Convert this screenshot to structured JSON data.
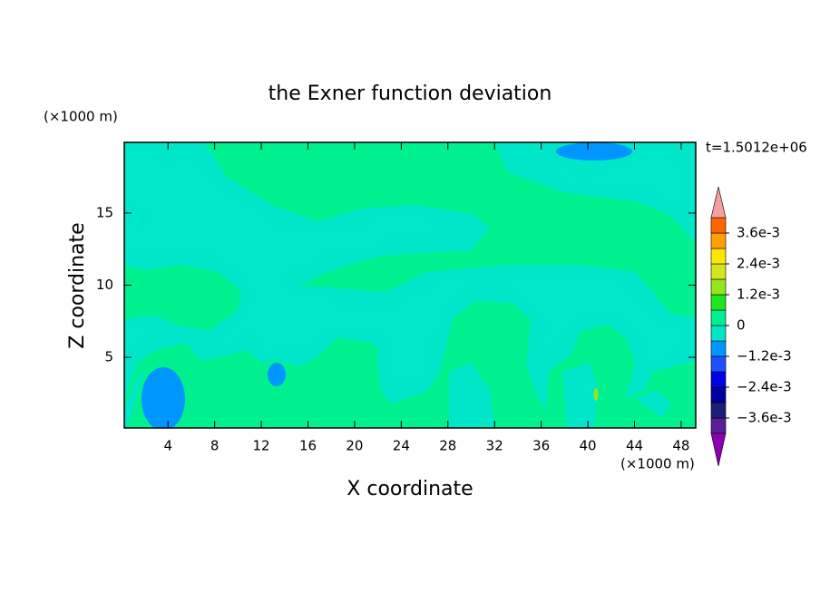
{
  "chart_data": {
    "type": "contour",
    "title": "the Exner function deviation",
    "x_label": "X coordinate",
    "y_label": "Z coordinate",
    "x_unit": "(×1000 m)",
    "y_unit": "(×1000 m)",
    "annotation": "t=1.5012e+06",
    "xlim": [
      0.25,
      49.25
    ],
    "ylim": [
      0.1,
      19.9
    ],
    "xticks": [
      4,
      8,
      12,
      16,
      20,
      24,
      28,
      32,
      36,
      40,
      44,
      48
    ],
    "yticks": [
      5,
      10,
      15
    ],
    "colorbar": {
      "levels": [
        -0.0042,
        -0.0036,
        -0.003,
        -0.0024,
        -0.0018,
        -0.0012,
        -0.0006,
        0,
        0.0006,
        0.0012,
        0.0018,
        0.0024,
        0.003,
        0.0036,
        0.0042
      ],
      "colors": [
        "#5a1e96",
        "#1e1e78",
        "#0000a0",
        "#0000e6",
        "#1e50ff",
        "#0096ff",
        "#00e6c8",
        "#00f090",
        "#1ee61e",
        "#96e61e",
        "#d2e61e",
        "#ffe600",
        "#ffa000",
        "#ff6400",
        "#ff1e1e"
      ],
      "under_color": "#8c00b4",
      "over_color": "#f4a0a0",
      "ticks": [
        {
          "value": 0.0036,
          "label": "3.6e-3"
        },
        {
          "value": 0.0024,
          "label": "2.4e-3"
        },
        {
          "value": 0.0012,
          "label": "1.2e-3"
        },
        0,
        {
          "value": -0.0012,
          "label": "−1.2e-3"
        },
        {
          "value": -0.0024,
          "label": "−2.4e-3"
        },
        {
          "value": -0.0036,
          "label": "−3.6e-3"
        }
      ]
    }
  }
}
